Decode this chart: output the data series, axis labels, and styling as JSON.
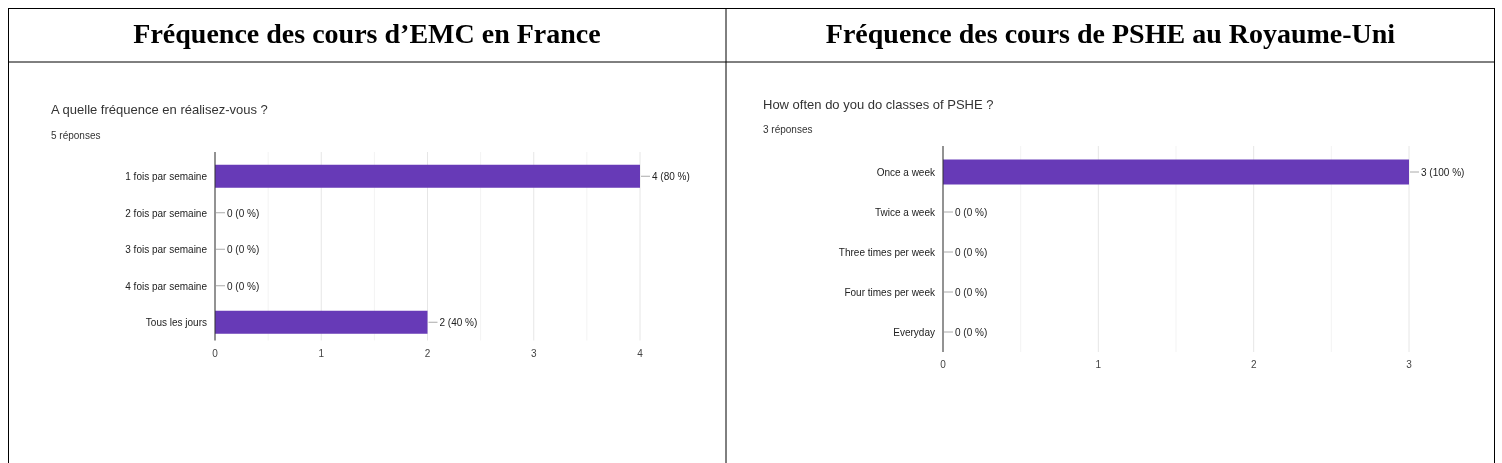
{
  "chart_data": [
    {
      "type": "bar",
      "orientation": "horizontal",
      "title": "Fréquence des cours d’EMC en France",
      "subtitle": "A quelle fréquence en réalisez-vous ?",
      "annotations": [
        "5 réponses"
      ],
      "categories": [
        "1 fois par semaine",
        "2 fois par semaine",
        "3 fois par semaine",
        "4 fois par semaine",
        "Tous les jours"
      ],
      "values": [
        4,
        0,
        0,
        0,
        2
      ],
      "value_labels": [
        "4 (80 %)",
        "0 (0 %)",
        "0 (0 %)",
        "0 (0 %)",
        "2 (40 %)"
      ],
      "color": "#673ab7",
      "xlim": [
        0,
        4
      ],
      "xticks": [
        0,
        {
          "value": 0.5,
          "label": null
        },
        1,
        {
          "value": 1.5,
          "label": null
        },
        2,
        {
          "value": 2.5,
          "label": null
        },
        3,
        {
          "value": 3.5,
          "label": null
        },
        4
      ],
      "grid": "x"
    },
    {
      "type": "bar",
      "orientation": "horizontal",
      "title": "Fréquence des cours de PSHE au Royaume-Uni",
      "subtitle": "How often do you do classes of PSHE ?",
      "annotations": [
        "3 réponses"
      ],
      "categories": [
        "Once a week",
        "Twice a week",
        "Three times per week",
        "Four times per week",
        "Everyday"
      ],
      "values": [
        3,
        0,
        0,
        0,
        0
      ],
      "value_labels": [
        "3 (100 %)",
        "0 (0 %)",
        "0 (0 %)",
        "0 (0 %)",
        "0 (0 %)"
      ],
      "color": "#673ab7",
      "xlim": [
        0,
        3
      ],
      "xticks": [
        0,
        {
          "value": 0.5,
          "label": null
        },
        1,
        {
          "value": 1.5,
          "label": null
        },
        2,
        {
          "value": 2.5,
          "label": null
        },
        3
      ],
      "grid": "x"
    }
  ]
}
